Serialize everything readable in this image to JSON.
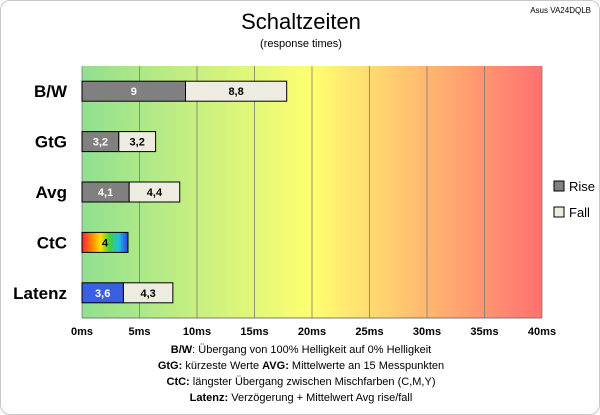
{
  "chart_data": {
    "type": "bar",
    "title": "Schaltzeiten",
    "subtitle": "(response times)",
    "corner_label": "Asus VA24DQLB",
    "categories": [
      "B/W",
      "GtG",
      "Avg",
      "CtC",
      "Latenz"
    ],
    "series": [
      {
        "name": "Rise",
        "values": [
          9,
          3.2,
          4.1,
          null,
          null
        ],
        "labels": [
          "9",
          "3,2",
          "4,1",
          "",
          ""
        ],
        "color": "#808080"
      },
      {
        "name": "Fall",
        "values": [
          8.8,
          3.2,
          4.4,
          null,
          null
        ],
        "labels": [
          "8,8",
          "3,2",
          "4,4",
          "",
          ""
        ],
        "color": "#eeece1"
      }
    ],
    "ctc": {
      "category": "CtC",
      "value": 4,
      "label": "4"
    },
    "latenz": {
      "category": "Latenz",
      "values": [
        3.6,
        4.3
      ],
      "labels": [
        "3,6",
        "4,3"
      ],
      "colors": [
        "#3a5fe0",
        "#eeece1"
      ]
    },
    "xlim": [
      0,
      40
    ],
    "xticks": [
      0,
      5,
      10,
      15,
      20,
      25,
      30,
      35,
      40
    ],
    "xtick_labels": [
      "0ms",
      "5ms",
      "10ms",
      "15ms",
      "20ms",
      "25ms",
      "30ms",
      "35ms",
      "40ms"
    ],
    "grid": true,
    "background_gradient": [
      "#90e090",
      "#ffff70",
      "#ff7070"
    ],
    "legend": {
      "position": "right",
      "items": [
        "Rise",
        "Fall"
      ]
    }
  },
  "notes": [
    {
      "items": [
        {
          "key": "B/W",
          "text": ":  Übergang von 100% Helligkeit auf 0% Helligkeit"
        }
      ]
    },
    {
      "items": [
        {
          "key": "GtG:",
          "text": " kürzeste  Werte"
        },
        {
          "key": "AVG:",
          "text": " Mittelwerte  an 15 Messpunkten"
        }
      ]
    },
    {
      "items": [
        {
          "key": "CtC:",
          "text": " längster Übergang  zwischen Mischfarben  (C,M,Y)"
        }
      ]
    },
    {
      "items": [
        {
          "key": "Latenz:",
          "text": " Verzögerung  + Mittelwert  Avg rise/fall"
        }
      ]
    }
  ]
}
